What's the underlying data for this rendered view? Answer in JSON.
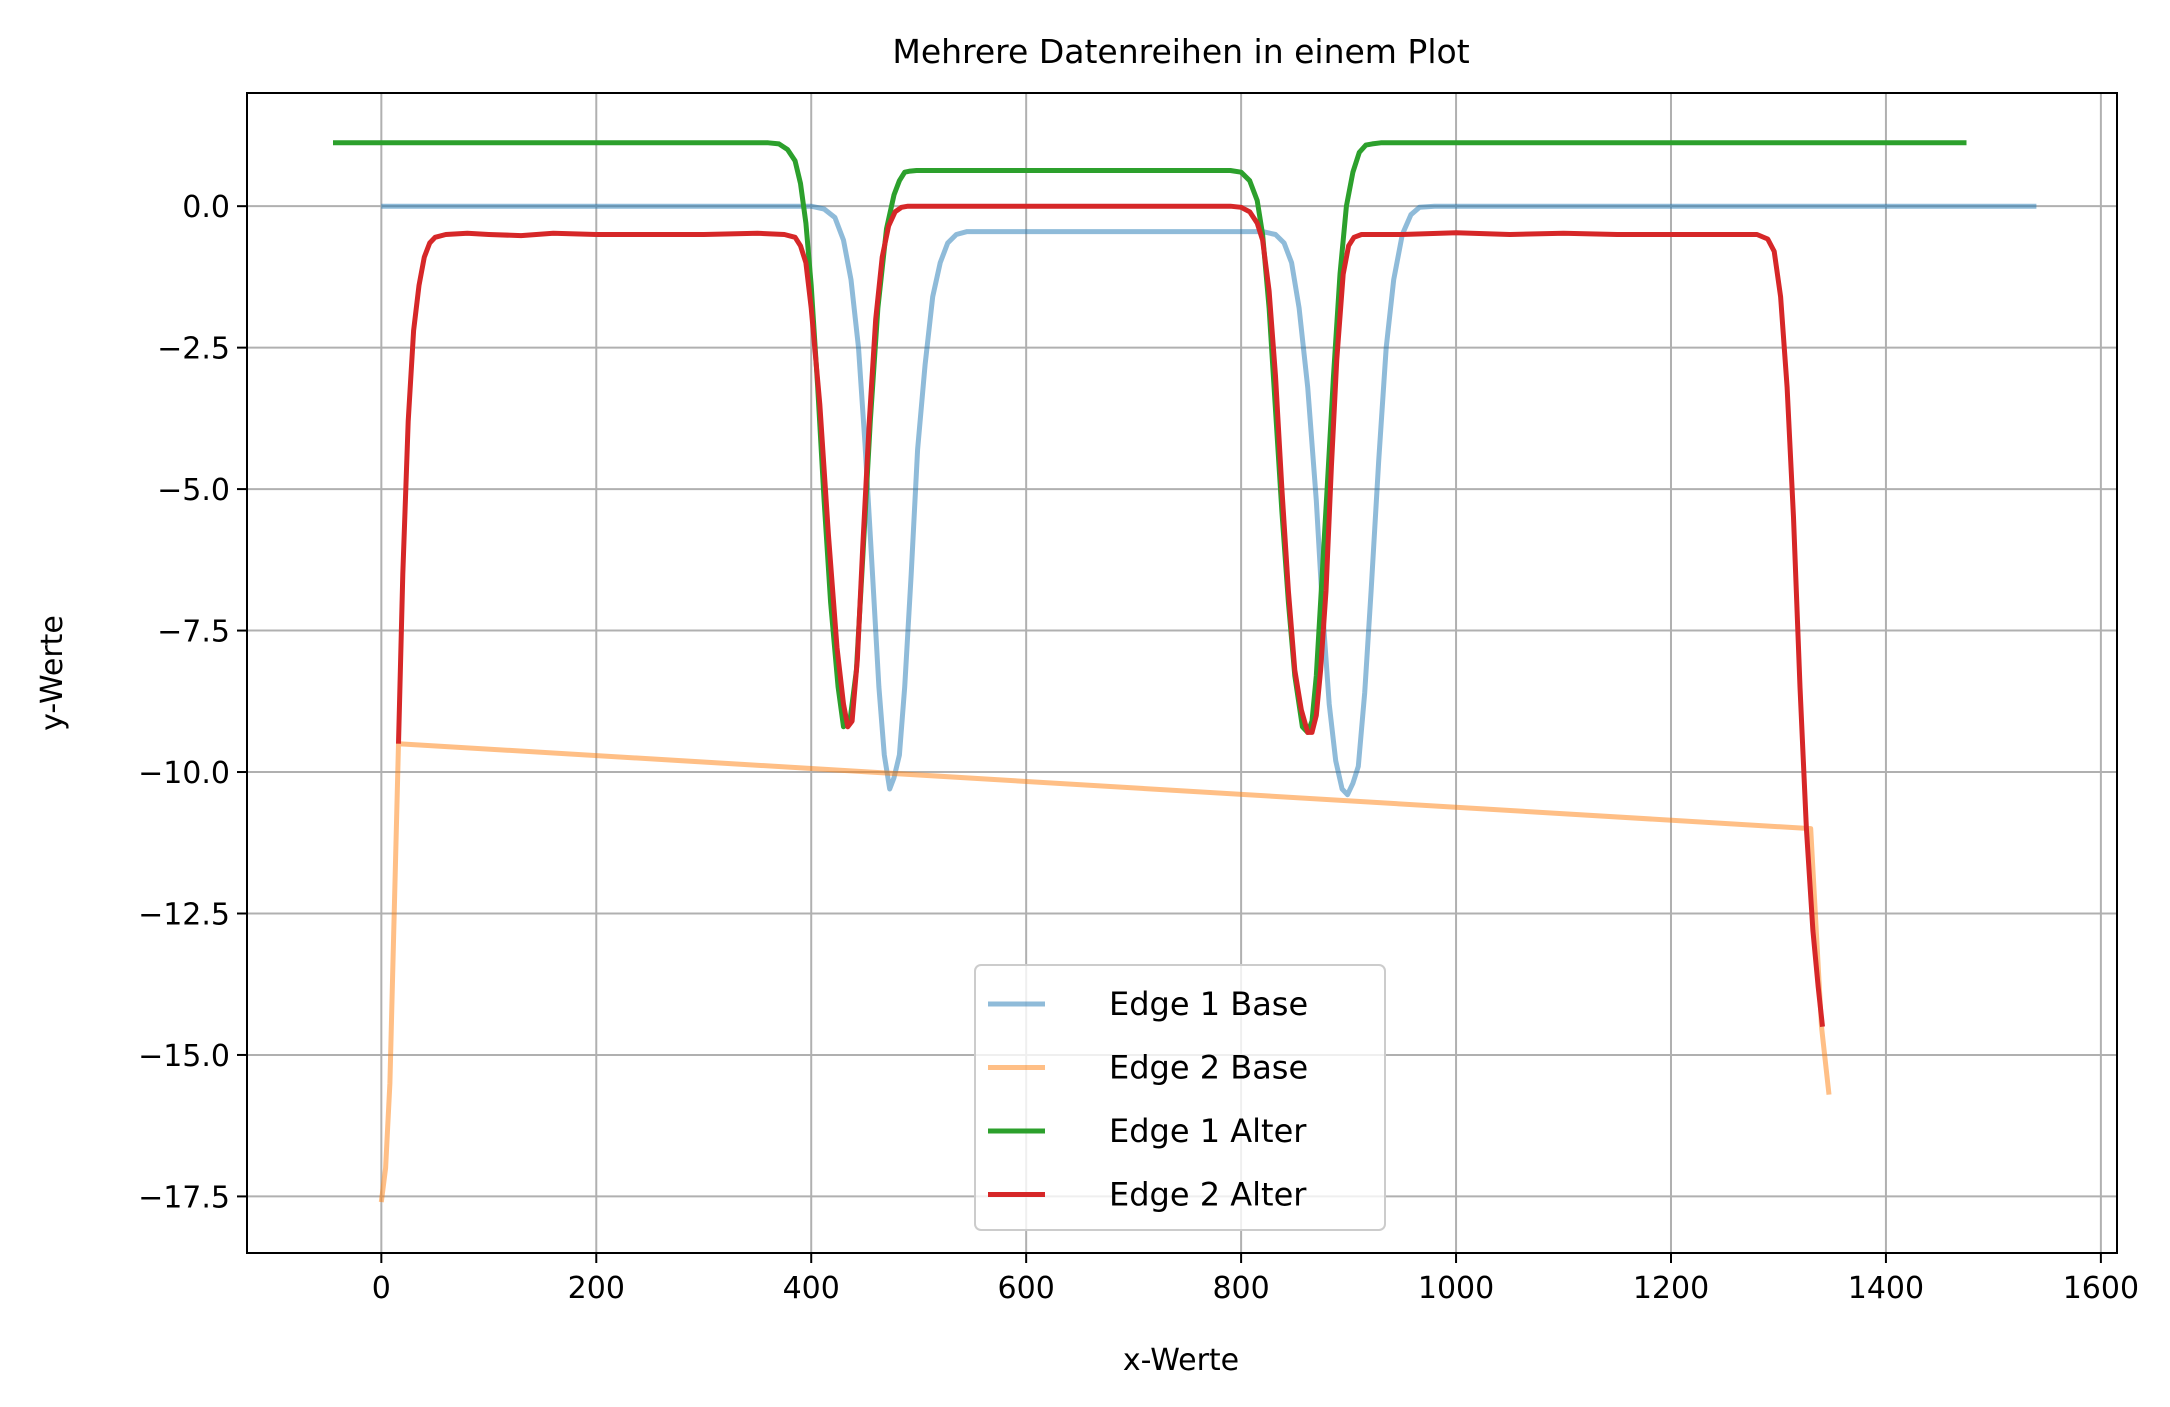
{
  "chart_data": {
    "type": "line",
    "title": "Mehrere Datenreihen in einem Plot",
    "xlabel": "x-Werte",
    "ylabel": "y-Werte",
    "xlim": [
      -125,
      1615
    ],
    "ylim": [
      -18.5,
      2.0
    ],
    "xticks": [
      0,
      200,
      400,
      600,
      800,
      1000,
      1200,
      1400,
      1600
    ],
    "xtick_labels": [
      "0",
      "200",
      "400",
      "600",
      "800",
      "1000",
      "1200",
      "1400",
      "1600"
    ],
    "yticks": [
      0.0,
      -2.5,
      -5.0,
      -7.5,
      -10.0,
      -12.5,
      -15.0,
      -17.5
    ],
    "ytick_labels": [
      "0.0",
      "−2.5",
      "−5.0",
      "−7.5",
      "−10.0",
      "−12.5",
      "−15.0",
      "−17.5"
    ],
    "grid": true,
    "legend_position": "lower center",
    "series": [
      {
        "name": "Edge 1 Base",
        "color": "#1f77b4",
        "opacity": 0.5,
        "x": [
          0,
          50,
          100,
          200,
          300,
          400,
          412,
          422,
          430,
          437,
          444,
          450,
          457,
          463,
          468,
          473,
          477,
          482,
          487,
          493,
          499,
          506,
          513,
          520,
          527,
          535,
          545,
          560,
          600,
          700,
          800,
          820,
          832,
          840,
          847,
          854,
          862,
          870,
          876,
          882,
          888,
          894,
          899,
          904,
          909,
          915,
          921,
          928,
          935,
          942,
          950,
          958,
          966,
          980,
          1100,
          1300,
          1540
        ],
        "y": [
          0,
          0,
          0,
          0,
          0,
          0,
          -0.05,
          -0.2,
          -0.6,
          -1.3,
          -2.5,
          -4.2,
          -6.5,
          -8.5,
          -9.7,
          -10.3,
          -10.1,
          -9.7,
          -8.5,
          -6.5,
          -4.3,
          -2.8,
          -1.6,
          -1.0,
          -0.65,
          -0.5,
          -0.45,
          -0.45,
          -0.45,
          -0.45,
          -0.45,
          -0.45,
          -0.5,
          -0.65,
          -1.0,
          -1.8,
          -3.2,
          -5.2,
          -7.2,
          -8.8,
          -9.8,
          -10.3,
          -10.4,
          -10.2,
          -9.9,
          -8.6,
          -6.8,
          -4.5,
          -2.5,
          -1.3,
          -0.5,
          -0.15,
          -0.02,
          0,
          0,
          0,
          0
        ]
      },
      {
        "name": "Edge 2 Base",
        "color": "#ff7f0e",
        "opacity": 0.5,
        "x": [
          0,
          4,
          8,
          12,
          16,
          1330,
          1340,
          1347
        ],
        "y": [
          -17.6,
          -17.0,
          -15.5,
          -12.5,
          -9.5,
          -11.0,
          -14.5,
          -15.7
        ]
      },
      {
        "name": "Edge 1 Alter",
        "color": "#2ca02c",
        "opacity": 1,
        "x": [
          -45,
          0,
          100,
          200,
          300,
          360,
          370,
          378,
          385,
          390,
          395,
          400,
          406,
          412,
          418,
          425,
          430,
          436,
          442,
          448,
          455,
          462,
          470,
          477,
          482,
          487,
          492,
          498,
          505,
          520,
          600,
          700,
          790,
          800,
          808,
          815,
          820,
          826,
          832,
          838,
          844,
          850,
          857,
          862,
          866,
          870,
          874,
          880,
          886,
          892,
          898,
          904,
          910,
          916,
          922,
          930,
          940,
          960,
          1100,
          1300,
          1475
        ],
        "y": [
          1.12,
          1.12,
          1.12,
          1.12,
          1.12,
          1.12,
          1.1,
          1.0,
          0.8,
          0.4,
          -0.3,
          -1.4,
          -3.2,
          -5.2,
          -7.0,
          -8.5,
          -9.2,
          -9.1,
          -8.2,
          -6.2,
          -3.8,
          -1.8,
          -0.4,
          0.2,
          0.45,
          0.6,
          0.62,
          0.63,
          0.63,
          0.63,
          0.63,
          0.63,
          0.63,
          0.6,
          0.45,
          0.1,
          -0.5,
          -1.8,
          -3.6,
          -5.4,
          -7.0,
          -8.3,
          -9.2,
          -9.3,
          -9.1,
          -8.3,
          -7.0,
          -5.0,
          -3.0,
          -1.2,
          0.0,
          0.6,
          0.95,
          1.08,
          1.1,
          1.12,
          1.12,
          1.12,
          1.12,
          1.12,
          1.12
        ]
      },
      {
        "name": "Edge 2 Alter",
        "color": "#d62728",
        "opacity": 1,
        "x": [
          16,
          20,
          25,
          30,
          35,
          40,
          45,
          50,
          60,
          80,
          100,
          130,
          160,
          200,
          250,
          300,
          350,
          375,
          385,
          390,
          395,
          400,
          408,
          416,
          424,
          430,
          434,
          438,
          443,
          448,
          454,
          460,
          466,
          472,
          478,
          484,
          490,
          500,
          520,
          600,
          700,
          790,
          800,
          808,
          815,
          820,
          826,
          832,
          838,
          844,
          850,
          856,
          862,
          866,
          870,
          874,
          879,
          884,
          889,
          895,
          900,
          905,
          912,
          925,
          950,
          1000,
          1050,
          1100,
          1150,
          1200,
          1250,
          1280,
          1290,
          1296,
          1302,
          1308,
          1314,
          1320,
          1326,
          1332,
          1337,
          1341
        ],
        "y": [
          -9.5,
          -6.5,
          -3.8,
          -2.2,
          -1.4,
          -0.9,
          -0.65,
          -0.55,
          -0.5,
          -0.48,
          -0.5,
          -0.52,
          -0.48,
          -0.5,
          -0.5,
          -0.5,
          -0.48,
          -0.5,
          -0.55,
          -0.7,
          -1.0,
          -1.8,
          -3.5,
          -5.8,
          -7.8,
          -8.8,
          -9.2,
          -9.1,
          -8.0,
          -6.0,
          -3.8,
          -2.0,
          -0.9,
          -0.35,
          -0.1,
          -0.02,
          0.0,
          0.0,
          0.0,
          0.0,
          0.0,
          0.0,
          -0.02,
          -0.1,
          -0.3,
          -0.6,
          -1.5,
          -3.0,
          -5.0,
          -6.8,
          -8.2,
          -8.9,
          -9.3,
          -9.3,
          -9.0,
          -8.2,
          -6.8,
          -4.6,
          -2.7,
          -1.2,
          -0.7,
          -0.55,
          -0.5,
          -0.5,
          -0.5,
          -0.47,
          -0.5,
          -0.48,
          -0.5,
          -0.5,
          -0.5,
          -0.5,
          -0.58,
          -0.8,
          -1.6,
          -3.2,
          -5.5,
          -8.5,
          -11.0,
          -12.8,
          -13.8,
          -14.5
        ]
      }
    ]
  }
}
